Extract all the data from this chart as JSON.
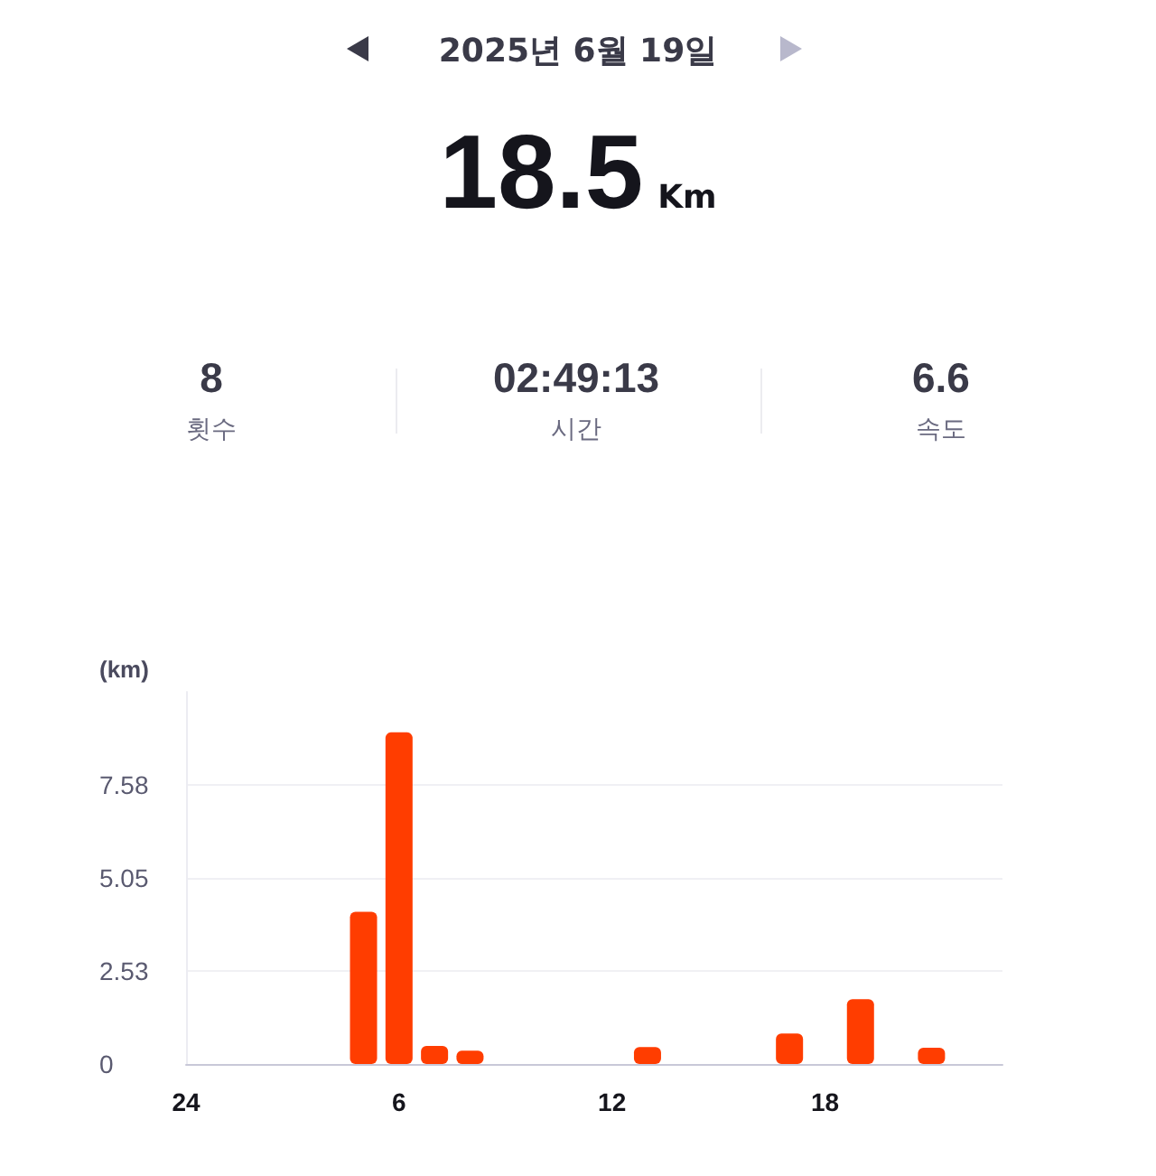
{
  "chart_data": {
    "type": "bar",
    "title": "2025년 6월 19일",
    "ylabel": "(km)",
    "annotations": [
      "18.5",
      "Km",
      "8",
      "횟수",
      "02:49:13",
      "시간",
      "6.6",
      "속도"
    ],
    "categories": [
      "24",
      null,
      null,
      null,
      null,
      null,
      "6",
      null,
      null,
      null,
      null,
      null,
      "12",
      null,
      null,
      null,
      null,
      null,
      "18",
      null,
      null,
      null,
      null,
      null
    ],
    "values": [
      0,
      0,
      0,
      0,
      0,
      4.13,
      9.0,
      0.49,
      0.36,
      0,
      0,
      0,
      0,
      0.46,
      0,
      0,
      0,
      0.83,
      0,
      1.76,
      0,
      0.44,
      0,
      0
    ],
    "color": "#ff3d00",
    "ylim": [
      0,
      10.1
    ],
    "yticks": [
      0,
      2.53,
      5.05,
      7.58
    ],
    "grid": "y"
  }
}
